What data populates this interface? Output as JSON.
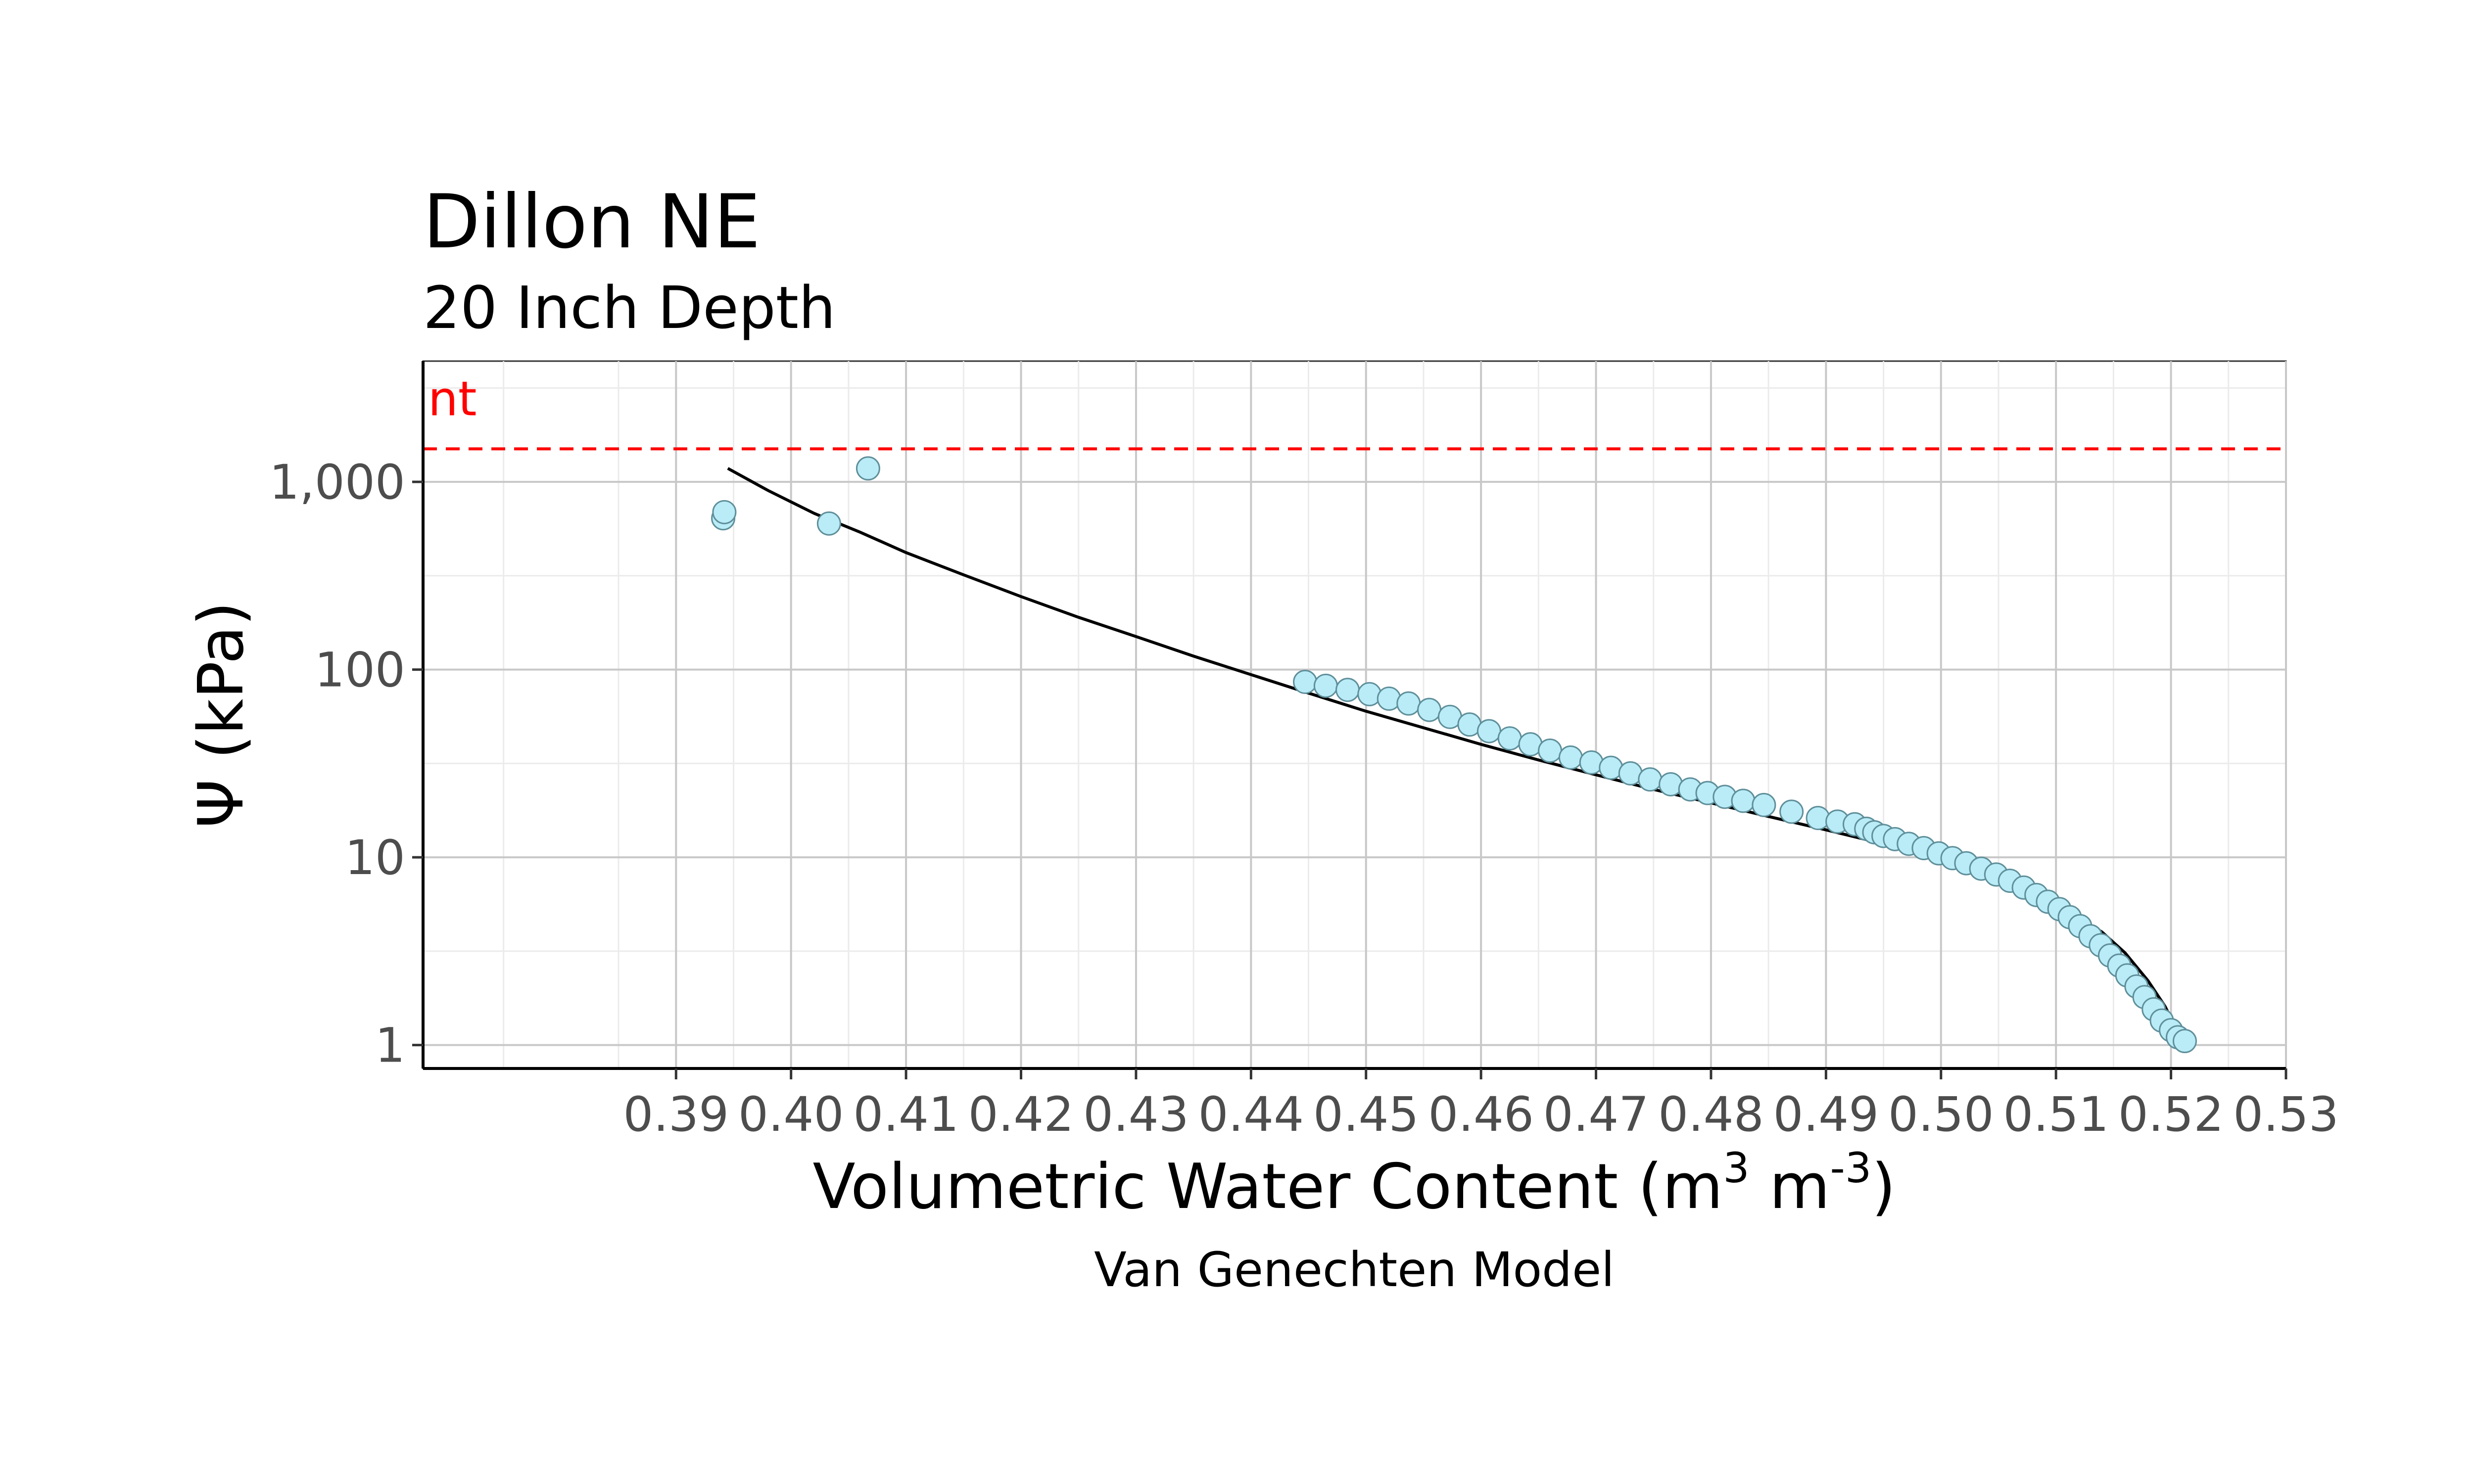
{
  "chart_data": {
    "type": "scatter",
    "title": "Dillon NE",
    "subtitle": "20 Inch Depth",
    "xlabel": "Volumetric Water Content (m",
    "xlabel_sup1": "3",
    "xlabel_mid": " m",
    "xlabel_sup2": "-3",
    "xlabel_end": ")",
    "ylabel": "Ψ (kPa)",
    "caption": "Van Genechten Model",
    "y_scale": "log",
    "xlim": [
      0.368,
      0.53
    ],
    "ylim": [
      0.75,
      4400
    ],
    "x_ticks": [
      0.39,
      0.4,
      0.41,
      0.42,
      0.43,
      0.44,
      0.45,
      0.46,
      0.47,
      0.48,
      0.49,
      0.5,
      0.51,
      0.52,
      0.53
    ],
    "x_tick_labels": [
      "0.39",
      "0.40",
      "0.41",
      "0.42",
      "0.43",
      "0.44",
      "0.45",
      "0.46",
      "0.47",
      "0.48",
      "0.49",
      "0.50",
      "0.51",
      "0.52",
      "0.53"
    ],
    "y_ticks": [
      1,
      10,
      100,
      1000
    ],
    "y_tick_labels": [
      "1",
      "10",
      "100",
      "1,000"
    ],
    "grid": true,
    "reference_line": {
      "y": 1500,
      "label": "nt",
      "color": "#ff0000",
      "style": "dashed"
    },
    "series": [
      {
        "type": "points",
        "marker_fill": "#b9ecf7",
        "marker_stroke": "#5f8f9a",
        "x": [
          0.3941,
          0.3942,
          0.4033,
          0.4067,
          0.4447,
          0.4465,
          0.4484,
          0.4503,
          0.452,
          0.4537,
          0.4555,
          0.4573,
          0.459,
          0.4607,
          0.4625,
          0.4643,
          0.466,
          0.4678,
          0.4696,
          0.4713,
          0.473,
          0.4747,
          0.4765,
          0.4782,
          0.4797,
          0.4812,
          0.4828,
          0.4846,
          0.487,
          0.4893,
          0.491,
          0.4925,
          0.4935,
          0.4942,
          0.495,
          0.496,
          0.4972,
          0.4985,
          0.4998,
          0.501,
          0.5022,
          0.5035,
          0.5048,
          0.506,
          0.5072,
          0.5083,
          0.5093,
          0.5103,
          0.5112,
          0.5121,
          0.513,
          0.5139,
          0.5147,
          0.5155,
          0.5162,
          0.517,
          0.5177,
          0.5185,
          0.5192,
          0.52,
          0.5206,
          0.5212
        ],
        "y": [
          640,
          690,
          600,
          1180,
          86,
          82,
          78,
          74,
          70,
          66,
          61,
          56,
          51,
          47,
          43,
          40,
          37,
          34,
          32,
          30,
          28,
          26,
          24.5,
          23,
          22,
          21,
          20,
          19,
          17.5,
          16.2,
          15.5,
          15,
          14.2,
          13.6,
          13,
          12.5,
          11.8,
          11.2,
          10.5,
          9.9,
          9.3,
          8.7,
          8.1,
          7.5,
          6.9,
          6.3,
          5.8,
          5.3,
          4.8,
          4.3,
          3.8,
          3.4,
          3.0,
          2.65,
          2.35,
          2.05,
          1.8,
          1.55,
          1.35,
          1.2,
          1.1,
          1.05
        ]
      },
      {
        "type": "curve",
        "line_color": "#000000",
        "x": [
          0.3945,
          0.398,
          0.402,
          0.406,
          0.41,
          0.415,
          0.42,
          0.425,
          0.43,
          0.435,
          0.44,
          0.445,
          0.45,
          0.455,
          0.46,
          0.465,
          0.47,
          0.475,
          0.48,
          0.485,
          0.49,
          0.495,
          0.5,
          0.505,
          0.508,
          0.511,
          0.514,
          0.516,
          0.518,
          0.5195,
          0.5205,
          0.521
        ],
        "y": [
          1180,
          900,
          680,
          540,
          420,
          320,
          245,
          190,
          150,
          118,
          94,
          75,
          60,
          49,
          40,
          33,
          27.5,
          23,
          19.5,
          16.5,
          14,
          11.8,
          9.8,
          7.8,
          6.5,
          5.2,
          4.0,
          3.1,
          2.2,
          1.6,
          1.2,
          1.05
        ]
      }
    ]
  }
}
